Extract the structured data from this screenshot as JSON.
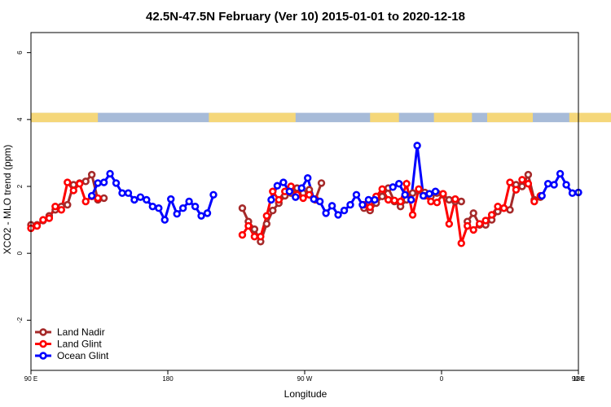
{
  "chart_data": {
    "type": "line",
    "title": "42.5N-47.5N February (Ver 10)   2015-01-01 to 2020-12-18",
    "xlabel": "Longitude",
    "ylabel": "XCO2 - MLO trend (ppm)",
    "x_domain": [
      90,
      450
    ],
    "ylim": [
      -3.5,
      6.6
    ],
    "x_ticks": [
      {
        "x": 90,
        "label": "90 E"
      },
      {
        "x": 180,
        "label": "180"
      },
      {
        "x": 270,
        "label": "90 W"
      },
      {
        "x": 360,
        "label": "0"
      },
      {
        "x": 450,
        "label": "90 E"
      },
      {
        "x": 540,
        "label": "180"
      }
    ],
    "y_ticks": [
      {
        "y": -2,
        "label": "-2"
      },
      {
        "y": 0,
        "label": "0"
      },
      {
        "y": 2,
        "label": "2"
      },
      {
        "y": 4,
        "label": "4"
      },
      {
        "y": 6,
        "label": "6"
      }
    ],
    "landmask": {
      "y_range": [
        3.92,
        4.2
      ],
      "land_color": "#f5d77a",
      "ocean_color": "#a7bbd8",
      "land_segments": [
        [
          90,
          134
        ],
        [
          207,
          264
        ],
        [
          313,
          332
        ],
        [
          355,
          380
        ],
        [
          390,
          420
        ],
        [
          444,
          478
        ],
        [
          479,
          490
        ],
        [
          495,
          500
        ],
        [
          555,
          632
        ],
        [
          638,
          667
        ],
        [
          691,
          700
        ],
        [
          710,
          720
        ]
      ]
    },
    "series": [
      {
        "name": "Land Nadir",
        "color": "#a52a2a",
        "segments": [
          [
            [
              90,
              0.85
            ],
            [
              94,
              0.85
            ],
            [
              98,
              0.98
            ],
            [
              102,
              1.12
            ],
            [
              106,
              1.3
            ],
            [
              110,
              1.4
            ],
            [
              114,
              1.45
            ],
            [
              118,
              2.05
            ],
            [
              122,
              2.1
            ],
            [
              126,
              2.15
            ],
            [
              130,
              2.35
            ],
            [
              134,
              1.6
            ],
            [
              138,
              1.65
            ]
          ],
          [
            [
              229,
              1.35
            ],
            [
              233,
              0.95
            ],
            [
              237,
              0.72
            ],
            [
              241,
              0.35
            ],
            [
              245,
              0.88
            ],
            [
              249,
              1.28
            ],
            [
              253,
              1.5
            ],
            [
              257,
              1.72
            ],
            [
              261,
              1.8
            ],
            [
              265,
              1.95
            ],
            [
              269,
              1.8
            ],
            [
              273,
              1.9
            ],
            [
              277,
              1.6
            ],
            [
              281,
              2.1
            ]
          ],
          [
            [
              309,
              1.35
            ],
            [
              313,
              1.28
            ],
            [
              317,
              1.5
            ],
            [
              321,
              1.7
            ],
            [
              325,
              1.95
            ],
            [
              329,
              1.55
            ],
            [
              333,
              1.4
            ],
            [
              337,
              1.6
            ],
            [
              341,
              1.8
            ],
            [
              345,
              1.88
            ],
            [
              349,
              1.82
            ],
            [
              353,
              1.7
            ],
            [
              357,
              1.8
            ],
            [
              361,
              1.75
            ],
            [
              365,
              1.6
            ],
            [
              369,
              1.55
            ],
            [
              373,
              1.55
            ]
          ],
          [
            [
              377,
              0.95
            ],
            [
              381,
              1.2
            ],
            [
              385,
              0.85
            ],
            [
              389,
              0.85
            ],
            [
              393,
              1.0
            ],
            [
              397,
              1.25
            ],
            [
              401,
              1.35
            ],
            [
              405,
              1.3
            ],
            [
              409,
              2.05
            ],
            [
              413,
              2.0
            ],
            [
              417,
              2.35
            ],
            [
              421,
              1.6
            ],
            [
              425,
              1.68
            ]
          ]
        ]
      },
      {
        "name": "Land Glint",
        "color": "#ff0000",
        "segments": [
          [
            [
              90,
              0.75
            ],
            [
              94,
              0.82
            ],
            [
              98,
              1.0
            ],
            [
              102,
              1.05
            ],
            [
              106,
              1.4
            ],
            [
              110,
              1.3
            ],
            [
              114,
              2.12
            ],
            [
              118,
              1.88
            ],
            [
              122,
              2.08
            ],
            [
              126,
              1.55
            ],
            [
              130,
              1.7
            ],
            [
              134,
              1.65
            ]
          ],
          [
            [
              229,
              0.55
            ],
            [
              233,
              0.82
            ],
            [
              237,
              0.5
            ],
            [
              241,
              0.5
            ],
            [
              245,
              1.12
            ],
            [
              249,
              1.85
            ],
            [
              253,
              1.6
            ],
            [
              257,
              1.85
            ],
            [
              261,
              2.0
            ],
            [
              265,
              1.75
            ],
            [
              269,
              1.65
            ],
            [
              273,
              1.75
            ],
            [
              277,
              1.62
            ]
          ],
          [
            [
              309,
              1.45
            ],
            [
              313,
              1.38
            ],
            [
              317,
              1.7
            ],
            [
              321,
              1.92
            ],
            [
              325,
              1.6
            ],
            [
              329,
              1.58
            ],
            [
              333,
              1.55
            ],
            [
              337,
              2.08
            ],
            [
              341,
              1.15
            ],
            [
              345,
              1.92
            ],
            [
              349,
              1.72
            ],
            [
              353,
              1.55
            ],
            [
              357,
              1.52
            ],
            [
              361,
              1.78
            ],
            [
              365,
              0.88
            ],
            [
              369,
              1.62
            ],
            [
              373,
              0.3
            ],
            [
              377,
              0.82
            ],
            [
              381,
              0.7
            ],
            [
              385,
              0.88
            ],
            [
              389,
              0.98
            ],
            [
              393,
              1.15
            ],
            [
              397,
              1.4
            ],
            [
              401,
              1.35
            ],
            [
              405,
              2.12
            ],
            [
              409,
              1.9
            ],
            [
              413,
              2.2
            ],
            [
              417,
              2.08
            ],
            [
              421,
              1.55
            ],
            [
              425,
              1.72
            ]
          ]
        ]
      },
      {
        "name": "Ocean Glint",
        "color": "#0000ff",
        "segments": [
          [
            [
              130,
              1.72
            ],
            [
              134,
              2.1
            ],
            [
              138,
              2.12
            ],
            [
              142,
              2.38
            ],
            [
              146,
              2.1
            ],
            [
              150,
              1.8
            ],
            [
              154,
              1.8
            ],
            [
              158,
              1.6
            ],
            [
              162,
              1.68
            ],
            [
              166,
              1.6
            ],
            [
              170,
              1.4
            ],
            [
              174,
              1.35
            ],
            [
              178,
              1.0
            ],
            [
              182,
              1.62
            ],
            [
              186,
              1.18
            ],
            [
              190,
              1.35
            ],
            [
              194,
              1.55
            ],
            [
              198,
              1.4
            ],
            [
              202,
              1.12
            ],
            [
              206,
              1.2
            ],
            [
              210,
              1.75
            ]
          ],
          [
            [
              248,
              1.6
            ],
            [
              252,
              2.02
            ],
            [
              256,
              2.12
            ],
            [
              260,
              1.85
            ],
            [
              264,
              1.68
            ],
            [
              268,
              1.95
            ],
            [
              272,
              2.25
            ],
            [
              276,
              1.62
            ],
            [
              280,
              1.55
            ],
            [
              284,
              1.2
            ],
            [
              288,
              1.42
            ],
            [
              292,
              1.15
            ],
            [
              296,
              1.28
            ],
            [
              300,
              1.45
            ],
            [
              304,
              1.75
            ],
            [
              308,
              1.45
            ],
            [
              312,
              1.6
            ],
            [
              316,
              1.6
            ]
          ],
          [
            [
              328,
              1.98
            ],
            [
              332,
              2.08
            ],
            [
              336,
              1.75
            ],
            [
              340,
              1.6
            ],
            [
              344,
              3.22
            ],
            [
              348,
              1.72
            ],
            [
              352,
              1.78
            ],
            [
              356,
              1.85
            ]
          ],
          [
            [
              426,
              1.72
            ],
            [
              430,
              2.08
            ],
            [
              434,
              2.05
            ],
            [
              438,
              2.38
            ],
            [
              442,
              2.05
            ],
            [
              446,
              1.8
            ],
            [
              450,
              1.82
            ],
            [
              454,
              1.58
            ],
            [
              458,
              1.68
            ],
            [
              462,
              1.65
            ]
          ]
        ]
      }
    ],
    "legend": {
      "placement": "bottom-left",
      "entries": [
        {
          "name": "Land Nadir",
          "color": "#a52a2a"
        },
        {
          "name": "Land Glint",
          "color": "#ff0000"
        },
        {
          "name": "Ocean Glint",
          "color": "#0000ff"
        }
      ]
    }
  }
}
